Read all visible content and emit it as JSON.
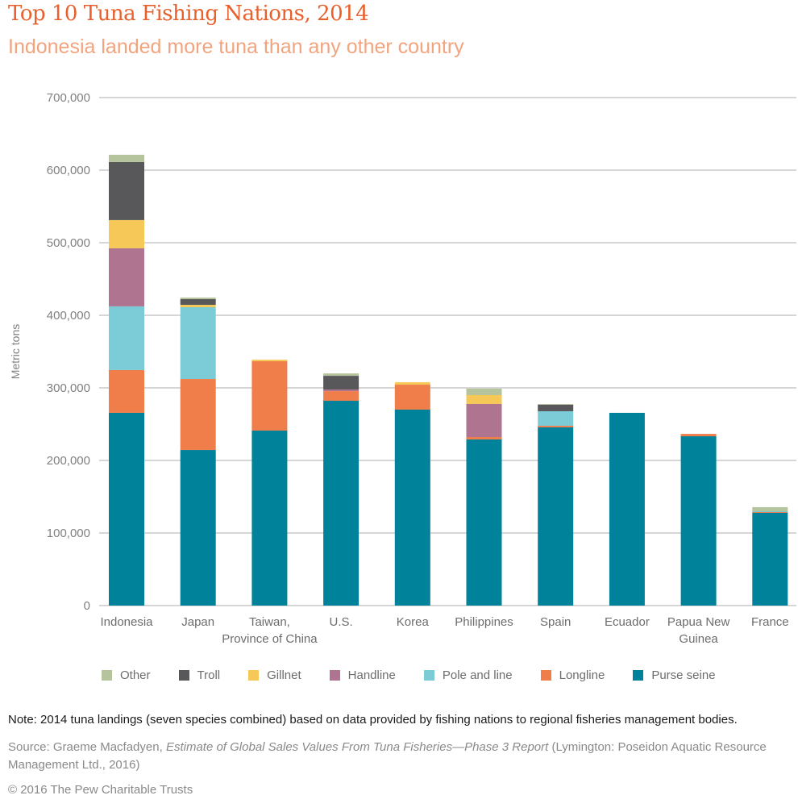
{
  "header": {
    "title": "Top 10 Tuna Fishing Nations, 2014",
    "subtitle": "Indonesia landed more tuna than any other country"
  },
  "chart_data": {
    "type": "bar",
    "stacked": true,
    "title": "Top 10 Tuna Fishing Nations, 2014",
    "subtitle": "Indonesia landed more tuna than any other country",
    "xlabel": "",
    "ylabel": "Metric tons",
    "ylim": [
      0,
      700000
    ],
    "yticks": [
      0,
      100000,
      200000,
      300000,
      400000,
      500000,
      600000,
      700000
    ],
    "ytick_labels": [
      "0",
      "100,000",
      "200,000",
      "300,000",
      "400,000",
      "500,000",
      "600,000",
      "700,000"
    ],
    "grid": true,
    "legend_position": "bottom",
    "categories": [
      [
        "Indonesia"
      ],
      [
        "Japan"
      ],
      [
        "Taiwan,",
        "Province of China"
      ],
      [
        "U.S."
      ],
      [
        "Korea"
      ],
      [
        "Philippines"
      ],
      [
        "Spain"
      ],
      [
        "Ecuador"
      ],
      [
        "Papua New",
        "Guinea"
      ],
      [
        "France"
      ]
    ],
    "series": [
      {
        "name": "Purse seine",
        "color": "#00829A",
        "values": [
          265600,
          214400,
          241100,
          282200,
          270000,
          228900,
          245600,
          265600,
          233300,
          127800
        ]
      },
      {
        "name": "Longline",
        "color": "#EF7E4B",
        "values": [
          58900,
          97800,
          95600,
          13300,
          34400,
          3300,
          2200,
          0,
          3300,
          1100
        ]
      },
      {
        "name": "Pole and line",
        "color": "#7BCCD6",
        "values": [
          87800,
          98900,
          0,
          0,
          0,
          0,
          20000,
          0,
          0,
          1100
        ]
      },
      {
        "name": "Handline",
        "color": "#AE7490",
        "values": [
          80000,
          0,
          0,
          2200,
          0,
          45600,
          0,
          0,
          0,
          0
        ]
      },
      {
        "name": "Gillnet",
        "color": "#F6C858",
        "values": [
          38900,
          3300,
          2200,
          0,
          3300,
          12200,
          0,
          0,
          0,
          0
        ]
      },
      {
        "name": "Troll",
        "color": "#58585A",
        "values": [
          80000,
          7800,
          0,
          18900,
          0,
          0,
          8900,
          0,
          0,
          0
        ]
      },
      {
        "name": "Other",
        "color": "#B5C49D",
        "values": [
          10000,
          2200,
          0,
          3300,
          0,
          8900,
          1100,
          0,
          0,
          5600
        ]
      }
    ],
    "legend_order": [
      "Other",
      "Troll",
      "Gillnet",
      "Handline",
      "Pole and line",
      "Longline",
      "Purse seine"
    ]
  },
  "footer": {
    "note": "Note: 2014 tuna landings (seven species combined) based on data provided by fishing nations to regional fisheries management bodies.",
    "source_prefix": "Source: Graeme Macfadyen, ",
    "source_title": "Estimate of Global Sales Values From Tuna Fisheries—Phase 3 Report",
    "source_suffix": " (Lymington: Poseidon Aquatic Resource Management Ltd., 2016)",
    "copyright": "© 2016 The Pew Charitable Trusts"
  }
}
